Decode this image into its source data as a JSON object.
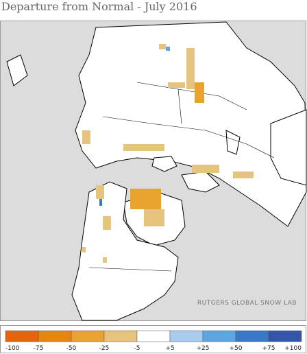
{
  "header": {
    "title": "Departure from Normal - July 2016"
  },
  "map": {
    "credit": "RUTGERS GLOBAL SNOW LAB"
  },
  "legend": {
    "labels": [
      "-100",
      "-75",
      "-50",
      "-25",
      "-5",
      "+5",
      "+25",
      "+50",
      "+75",
      "+100"
    ],
    "colors": [
      "#e8640a",
      "#e8860c",
      "#e8a42e",
      "#e6c47e",
      "#ffffff",
      "#a8cbee",
      "#5ea6e0",
      "#3a78c6",
      "#3455a8"
    ]
  }
}
